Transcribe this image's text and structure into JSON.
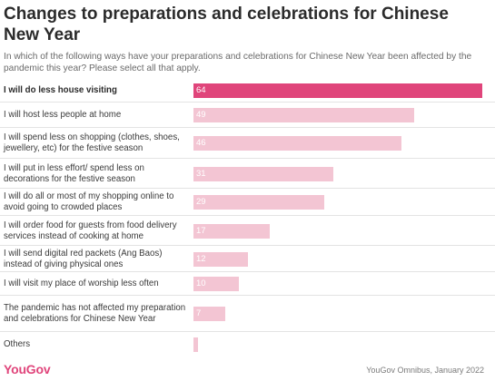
{
  "header": {
    "title": "Changes to preparations and celebrations for Chinese New Year",
    "subtitle": "In which of the following ways have your preparations and celebrations for Chinese New Year been affected by the pandemic this year? Please select all that apply."
  },
  "chart_data": {
    "type": "bar",
    "orientation": "horizontal",
    "categories": [
      "I will do less house visiting",
      "I will host less people at home",
      "I will spend less on shopping (clothes, shoes, jewellery, etc) for the festive season",
      "I will put in less effort/ spend less on decorations for the festive season",
      "I will do all or most of my shopping online to avoid going to crowded places",
      "I will order food for guests from food delivery services instead of cooking at home",
      "I will send digital red packets (Ang Baos) instead of giving physical ones",
      "I will visit my place of worship less often",
      "The pandemic has not affected my preparation and celebrations for Chinese New Year",
      "Others"
    ],
    "values": [
      64,
      49,
      46,
      31,
      29,
      17,
      12,
      10,
      7,
      1
    ],
    "value_labels": [
      "64",
      "49",
      "46",
      "31",
      "29",
      "17",
      "12",
      "10",
      "7",
      ""
    ],
    "highlighted_index": 0,
    "xlim": [
      0,
      64
    ],
    "colors": {
      "highlight": "#e0457b",
      "bar": "#f3c5d3"
    }
  },
  "footer": {
    "logo": "YouGov",
    "source": "YouGov Omnibus, January 2022"
  }
}
